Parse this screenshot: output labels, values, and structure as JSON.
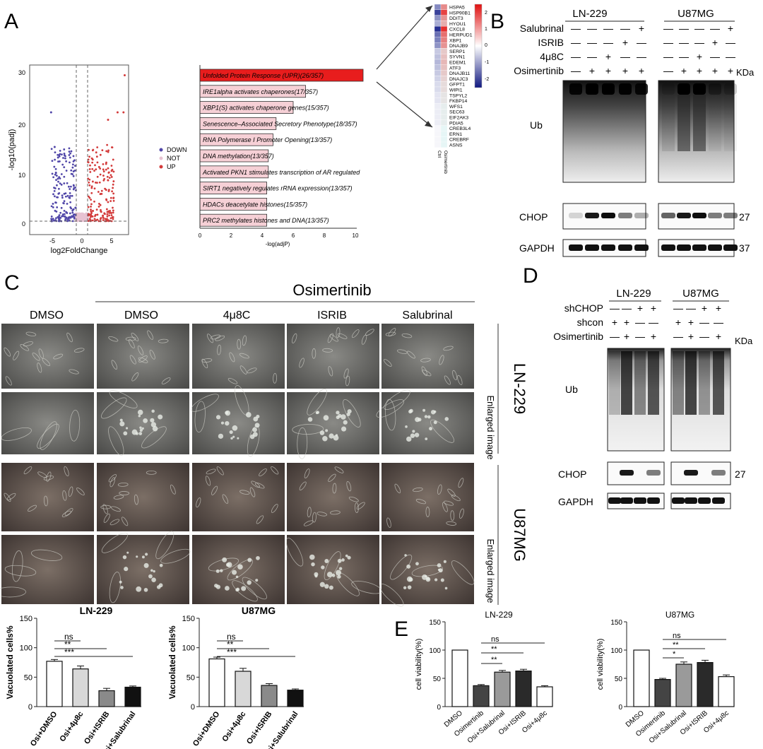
{
  "panel_labels": {
    "a": "A",
    "b": "B",
    "c": "C",
    "d": "D",
    "e": "E"
  },
  "volcano": {
    "xlabel": "log2FoldChange",
    "ylabel": "-log10(padj)",
    "xticks": [
      "-5",
      "0",
      "5"
    ],
    "yticks": [
      "0",
      "10",
      "20",
      "30"
    ],
    "legend": [
      "DOWN",
      "NOT",
      "UP"
    ],
    "colors": {
      "down": "#5046a8",
      "not": "#e7c2d2",
      "up": "#d33a3a"
    }
  },
  "enrichment": {
    "xlabel": "-log(adjP)",
    "xticks": [
      "0",
      "2",
      "4",
      "6",
      "8",
      "10"
    ],
    "terms": [
      {
        "label": "Unfolded Protein Response (UPR)(26/357)",
        "value": 10.5
      },
      {
        "label": "IRE1alpha activates chaperones(17/357)",
        "value": 6.8
      },
      {
        "label": "XBP1(S) activates chaperone genes(15/357)",
        "value": 6.0
      },
      {
        "label": "Senescence–Associated Secretory Phenotype(18/357)",
        "value": 4.9
      },
      {
        "label": "RNA Polymerase I Promoter Opening(13/357)",
        "value": 4.7
      },
      {
        "label": "DNA methylation(13/357)",
        "value": 4.4
      },
      {
        "label": "Activated PKN1 stimulates transcription of AR regulated",
        "value": 4.4
      },
      {
        "label": "SIRT1 negatively regulates rRNA expression(13/357)",
        "value": 4.3
      },
      {
        "label": "HDACs deacetylate histones(15/357)",
        "value": 4.3
      },
      {
        "label": "PRC2 methylates histones and DNA(13/357)",
        "value": 4.3
      }
    ]
  },
  "heatmap": {
    "genes": [
      "HSPA5",
      "HSP90B1",
      "DDIT3",
      "HYOU1",
      "CXCL8",
      "HERPUD1",
      "XBP1",
      "DNAJB9",
      "SERP1",
      "SYVN1",
      "EDEM1",
      "ATF3",
      "DNAJB11",
      "DNAJC3",
      "GFPT1",
      "WIPI1",
      "TSPYL2",
      "FKBP14",
      "WFS1",
      "SEC63",
      "EIF2AK3",
      "PDIA5",
      "CREB3L4",
      "ERN1",
      "CREBRF",
      "ASNS"
    ],
    "columns": [
      "Ctrl",
      "Osimertinib"
    ],
    "scale": [
      "2",
      "1",
      "0",
      "-1",
      "-2"
    ]
  },
  "blotB": {
    "cell_lines": [
      "LN-229",
      "U87MG"
    ],
    "rows": [
      {
        "name": "Salubrinal",
        "signs": [
          "—",
          "—",
          "—",
          "—",
          "+",
          "—",
          "—",
          "—",
          "—",
          "+"
        ]
      },
      {
        "name": "ISRIB",
        "signs": [
          "—",
          "—",
          "—",
          "+",
          "—",
          "—",
          "—",
          "—",
          "+",
          "—"
        ]
      },
      {
        "name": "4μ8C",
        "signs": [
          "—",
          "—",
          "+",
          "—",
          "—",
          "—",
          "—",
          "+",
          "—",
          "—"
        ]
      },
      {
        "name": "Osimertinib",
        "signs": [
          "—",
          "+",
          "+",
          "+",
          "+",
          "—",
          "+",
          "+",
          "+",
          "+"
        ]
      }
    ],
    "kda": "KDa",
    "bands": [
      "Ub",
      "CHOP",
      "GAPDH"
    ],
    "mw": [
      "27",
      "37"
    ]
  },
  "micro": {
    "group_title": "Osimertinib",
    "columns": [
      "DMSO",
      "DMSO",
      "4μ8C",
      "ISRIB",
      "Salubrinal"
    ],
    "row_labels": [
      "LN-229",
      "U87MG"
    ],
    "enlarged": "Enlarged image"
  },
  "blotD": {
    "cell_lines": [
      "LN-229",
      "U87MG"
    ],
    "rows": [
      {
        "name": "shCHOP",
        "signs": [
          "—",
          "—",
          "+",
          "+",
          "—",
          "—",
          "+",
          "+"
        ]
      },
      {
        "name": "shcon",
        "signs": [
          "+",
          "+",
          "—",
          "—",
          "+",
          "+",
          "—",
          "—"
        ]
      },
      {
        "name": "Osimertinib",
        "signs": [
          "—",
          "+",
          "—",
          "+",
          "—",
          "+",
          "—",
          "+"
        ]
      }
    ],
    "kda": "KDa",
    "bands": [
      "Ub",
      "CHOP",
      "GAPDH"
    ],
    "mw": [
      "27"
    ]
  },
  "vac_ylabel": "Vacuolated cells%",
  "sig": {
    "ns": "ns",
    "two": "**",
    "three": "***",
    "one": "*"
  },
  "chart_data": [
    {
      "type": "bar",
      "title": "LN-229",
      "ylabel": "Vacuolated cells%",
      "ylim": [
        0,
        150
      ],
      "yticks": [
        0,
        50,
        100,
        150
      ],
      "categories": [
        "Osi+DMSO",
        "Osi+4μ8c",
        "Osi+ISRIB",
        "Osi+Salubrinal"
      ],
      "values": [
        77,
        64,
        27,
        33
      ],
      "errors": [
        3,
        5,
        4,
        2
      ],
      "fills": [
        "#ffffff",
        "#d8d8d8",
        "#8a8a8a",
        "#111111"
      ]
    },
    {
      "type": "bar",
      "title": "U87MG",
      "ylabel": "Vacuolated cells%",
      "ylim": [
        0,
        150
      ],
      "yticks": [
        0,
        50,
        100,
        150
      ],
      "categories": [
        "Osi+DMSO",
        "Osi+4μ8c",
        "Osi+ISRIB",
        "Osi+Salubrinal"
      ],
      "values": [
        81,
        60,
        36,
        28
      ],
      "errors": [
        3,
        5,
        3,
        2
      ],
      "fills": [
        "#ffffff",
        "#d8d8d8",
        "#8a8a8a",
        "#111111"
      ]
    },
    {
      "type": "bar",
      "title": "LN-229",
      "ylabel": "cell viability(%)",
      "ylim": [
        0,
        150
      ],
      "yticks": [
        0,
        50,
        100,
        150
      ],
      "categories": [
        "DMSO",
        "Osimertinib",
        "Osi+Salubrinal",
        "Osi+ISRIB",
        "Osi+4μ8c"
      ],
      "values": [
        100,
        37,
        61,
        63,
        35
      ],
      "errors": [
        0,
        2,
        3,
        3,
        2
      ],
      "fills": [
        "#ffffff",
        "#444444",
        "#9a9a9a",
        "#2a2a2a",
        "#ffffff"
      ]
    },
    {
      "type": "bar",
      "title": "U87MG",
      "ylabel": "cell viability(%)",
      "ylim": [
        0,
        150
      ],
      "yticks": [
        0,
        50,
        100,
        150
      ],
      "categories": [
        "DMSO",
        "Osimertinib",
        "Osi+Salubrinal",
        "Osi+ISRIB",
        "Osi+4μ8c"
      ],
      "values": [
        100,
        48,
        75,
        78,
        53
      ],
      "errors": [
        0,
        2,
        4,
        4,
        3
      ],
      "fills": [
        "#ffffff",
        "#444444",
        "#9a9a9a",
        "#2a2a2a",
        "#ffffff"
      ]
    }
  ]
}
